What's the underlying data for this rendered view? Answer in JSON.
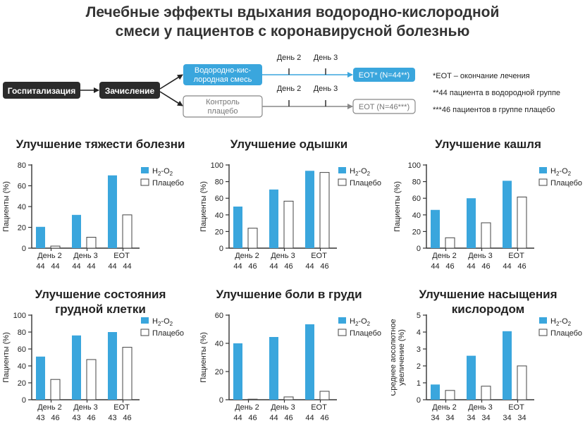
{
  "title_lines": [
    "Лечебные эффекты вдыхания водородно-кислородной",
    "смеси у пациентов с коронавирусной болезнью"
  ],
  "flow": {
    "hospitalization": "Госпитализация",
    "enrollment": "Зачисление",
    "h2_group": [
      "Водородно-кис-",
      "лородная смесь"
    ],
    "control_group": [
      "Контроль",
      "плацебо"
    ],
    "h2_eot": "EOT* (N=44**)",
    "placebo_eot": "EOT (N=46***)",
    "day2": "День 2",
    "day3": "День 3"
  },
  "notes": [
    "*EOT – окончание лечения",
    "**44 пациента в водородной группе",
    "***46 пациентов в группе плацебо"
  ],
  "colors": {
    "h2": "#3aa6dd",
    "placebo_fill": "#ffffff",
    "placebo_stroke": "#444444",
    "dark_box": "#2b2b2b",
    "gray_box": "#888888"
  },
  "legend": {
    "h2_prefix": "H",
    "h2_sub1": "2",
    "h2_mid": "-O",
    "h2_sub2": "2",
    "placebo": "Плацебо"
  },
  "chart_data": [
    {
      "type": "bar",
      "title_lines": [
        "Улучшение тяжести болезни"
      ],
      "ylabel_lines": [
        "Пациенты (%)"
      ],
      "ylim": [
        0,
        80
      ],
      "yticks": [
        0,
        20,
        40,
        60,
        80
      ],
      "categories": [
        "День 2",
        "День 3",
        "EOT"
      ],
      "n_labels": [
        [
          "44",
          "44"
        ],
        [
          "44",
          "44"
        ],
        [
          "44",
          "44"
        ]
      ],
      "series": [
        {
          "name": "H2-O2",
          "values": [
            20.5,
            32,
            70
          ]
        },
        {
          "name": "Плацебо",
          "values": [
            2,
            10.5,
            32
          ]
        }
      ]
    },
    {
      "type": "bar",
      "title_lines": [
        "Улучшение одышки"
      ],
      "ylabel_lines": [
        "Пациенты (%)"
      ],
      "ylim": [
        0,
        100
      ],
      "yticks": [
        0,
        20,
        40,
        60,
        80,
        100
      ],
      "categories": [
        "День 2",
        "День 3",
        "EOT"
      ],
      "n_labels": [
        [
          "44",
          "46"
        ],
        [
          "44",
          "46"
        ],
        [
          "44",
          "46"
        ]
      ],
      "series": [
        {
          "name": "H2-O2",
          "values": [
            50,
            70.5,
            93
          ]
        },
        {
          "name": "Плацебо",
          "values": [
            24,
            56.5,
            91
          ]
        }
      ]
    },
    {
      "type": "bar",
      "title_lines": [
        "Улучшение кашля"
      ],
      "ylabel_lines": [
        "Пациенты (%)"
      ],
      "ylim": [
        0,
        100
      ],
      "yticks": [
        0,
        20,
        40,
        60,
        80,
        100
      ],
      "categories": [
        "День 2",
        "День 3",
        "EOT"
      ],
      "n_labels": [
        [
          "44",
          "46"
        ],
        [
          "44",
          "46"
        ],
        [
          "44",
          "46"
        ]
      ],
      "series": [
        {
          "name": "H2-O2",
          "values": [
            46,
            60,
            81
          ]
        },
        {
          "name": "Плацебо",
          "values": [
            12.5,
            30.5,
            61.5
          ]
        }
      ]
    },
    {
      "type": "bar",
      "title_lines": [
        "Улучшение состояния",
        "грудной клетки"
      ],
      "ylabel_lines": [
        "Пациенты (%)"
      ],
      "ylim": [
        0,
        100
      ],
      "yticks": [
        0,
        20,
        40,
        60,
        80,
        100
      ],
      "categories": [
        "День 2",
        "День 3",
        "EOT"
      ],
      "n_labels": [
        [
          "43",
          "46"
        ],
        [
          "43",
          "46"
        ],
        [
          "43",
          "46"
        ]
      ],
      "series": [
        {
          "name": "H2-O2",
          "values": [
            51,
            76,
            80
          ]
        },
        {
          "name": "Плацебо",
          "values": [
            24,
            47.5,
            62
          ]
        }
      ]
    },
    {
      "type": "bar",
      "title_lines": [
        "Улучшение боли в груди"
      ],
      "ylabel_lines": [
        "Пациенты (%)"
      ],
      "ylim": [
        0,
        60
      ],
      "yticks": [
        0,
        20,
        40,
        60
      ],
      "categories": [
        "День 2",
        "День 3",
        "EOT"
      ],
      "n_labels": [
        [
          "44",
          "46"
        ],
        [
          "44",
          "46"
        ],
        [
          "44",
          "46"
        ]
      ],
      "series": [
        {
          "name": "H2-O2",
          "values": [
            40,
            44.5,
            53.5
          ]
        },
        {
          "name": "Плацебо",
          "values": [
            0,
            2,
            6
          ]
        }
      ]
    },
    {
      "type": "bar",
      "title_lines": [
        "Улучшение насыщения",
        "кислородом"
      ],
      "ylabel_lines": [
        "Среднее абсолютное",
        "увеличение (%)"
      ],
      "ylim": [
        0,
        5
      ],
      "yticks": [
        0,
        1,
        2,
        3,
        4,
        5
      ],
      "categories": [
        "День 2",
        "День 3",
        "EOT"
      ],
      "n_labels": [
        [
          "34",
          "34"
        ],
        [
          "34",
          "34"
        ],
        [
          "34",
          "34"
        ]
      ],
      "series": [
        {
          "name": "H2-O2",
          "values": [
            0.9,
            2.6,
            4.05
          ]
        },
        {
          "name": "Плацебо",
          "values": [
            0.55,
            0.8,
            2.0
          ]
        }
      ]
    }
  ]
}
